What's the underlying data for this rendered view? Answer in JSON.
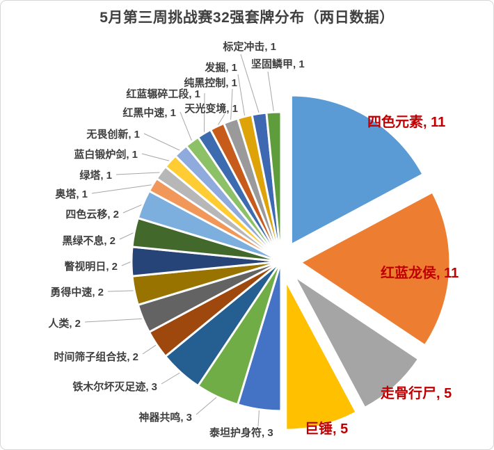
{
  "title": "5月第三周挑战赛32强套牌分布（两日数据）",
  "colors": {
    "title_text": "#404040",
    "label_text": "#3F3F3F",
    "emphasis_label_text": "#C00000",
    "leader_line": "#A6A6A6",
    "slice_border": "#FFFFFF",
    "frame_border": "#D6D6D6",
    "background": "#FFFFFF"
  },
  "chart_data": {
    "type": "pie",
    "title": "5月第三周挑战赛32强套牌分布（两日数据）",
    "total": 64,
    "legend_position": "none",
    "label_format": "name, value",
    "start_angle_deg": 0,
    "direction": "clockwise",
    "slices": [
      {
        "name": "四色元素",
        "value": 11,
        "color": "#5B9BD5",
        "exploded": true,
        "emphasized": true
      },
      {
        "name": "红蓝龙侯",
        "value": 11,
        "color": "#ED7D31",
        "exploded": true,
        "emphasized": true
      },
      {
        "name": "走骨行尸",
        "value": 5,
        "color": "#A5A5A5",
        "exploded": true,
        "emphasized": true
      },
      {
        "name": "巨锤",
        "value": 5,
        "color": "#FFC000",
        "exploded": true,
        "emphasized": true
      },
      {
        "name": "泰坦护身符",
        "value": 3,
        "color": "#4472C4",
        "exploded": false,
        "emphasized": false
      },
      {
        "name": "神器共鸣",
        "value": 3,
        "color": "#70AD47",
        "exploded": false,
        "emphasized": false
      },
      {
        "name": "铁木尔坏灭足迹",
        "value": 3,
        "color": "#255E91",
        "exploded": false,
        "emphasized": false
      },
      {
        "name": "时间筛子组合技",
        "value": 2,
        "color": "#9E480E",
        "exploded": false,
        "emphasized": false
      },
      {
        "name": "人类",
        "value": 2,
        "color": "#636363",
        "exploded": false,
        "emphasized": false
      },
      {
        "name": "勇得中速",
        "value": 2,
        "color": "#997300",
        "exploded": false,
        "emphasized": false
      },
      {
        "name": "瞥视明日",
        "value": 2,
        "color": "#264478",
        "exploded": false,
        "emphasized": false
      },
      {
        "name": "黑绿不息",
        "value": 2,
        "color": "#43682B",
        "exploded": false,
        "emphasized": false
      },
      {
        "name": "四色云移",
        "value": 2,
        "color": "#7CAFDD",
        "exploded": false,
        "emphasized": false
      },
      {
        "name": "奥塔",
        "value": 1,
        "color": "#F1975A",
        "exploded": false,
        "emphasized": false
      },
      {
        "name": "绿塔",
        "value": 1,
        "color": "#B7B7B7",
        "exploded": false,
        "emphasized": false
      },
      {
        "name": "蓝白锻炉剑",
        "value": 1,
        "color": "#FFCD33",
        "exploded": false,
        "emphasized": false
      },
      {
        "name": "无畏创新",
        "value": 1,
        "color": "#8FAADC",
        "exploded": false,
        "emphasized": false
      },
      {
        "name": "红黑中速",
        "value": 1,
        "color": "#8CC168",
        "exploded": false,
        "emphasized": false
      },
      {
        "name": "红蓝辗碎工段",
        "value": 1,
        "color": "#3C6BB0",
        "exploded": false,
        "emphasized": false
      },
      {
        "name": "天光变境",
        "value": 1,
        "color": "#C75B1C",
        "exploded": false,
        "emphasized": false
      },
      {
        "name": "纯黑控制",
        "value": 1,
        "color": "#9A9A9A",
        "exploded": false,
        "emphasized": false
      },
      {
        "name": "发掘",
        "value": 1,
        "color": "#DFA30A",
        "exploded": false,
        "emphasized": false
      },
      {
        "name": "标定冲击",
        "value": 1,
        "color": "#3E68B2",
        "exploded": false,
        "emphasized": false
      },
      {
        "name": "坚固鳞甲",
        "value": 1,
        "color": "#5F9C3C",
        "exploded": false,
        "emphasized": false
      }
    ]
  }
}
